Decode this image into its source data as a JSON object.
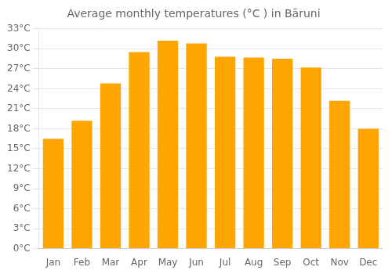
{
  "chart_data": {
    "type": "bar",
    "title": "Average monthly temperatures (°C ) in Bāruni",
    "categories": [
      "Jan",
      "Feb",
      "Mar",
      "Apr",
      "May",
      "Jun",
      "Jul",
      "Aug",
      "Sep",
      "Oct",
      "Nov",
      "Dec"
    ],
    "values": [
      16.5,
      19.2,
      24.8,
      29.5,
      31.2,
      30.8,
      28.8,
      28.7,
      28.5,
      27.2,
      22.2,
      18.0
    ],
    "color": "#FFA500",
    "ylim": [
      0,
      33
    ],
    "yticks": [
      {
        "value": 0,
        "label": "0°C"
      },
      {
        "value": 3,
        "label": "3°C"
      },
      {
        "value": 6,
        "label": "6°C"
      },
      {
        "value": 9,
        "label": "9°C"
      },
      {
        "value": 12,
        "label": "12°C"
      },
      {
        "value": 15,
        "label": "15°C"
      },
      {
        "value": 18,
        "label": "18°C"
      },
      {
        "value": 21,
        "label": "21°C"
      },
      {
        "value": 24,
        "label": "24°C"
      },
      {
        "value": 27,
        "label": "27°C"
      },
      {
        "value": 30,
        "label": "30°C"
      },
      {
        "value": 33,
        "label": "33°C"
      }
    ],
    "grid": true
  }
}
